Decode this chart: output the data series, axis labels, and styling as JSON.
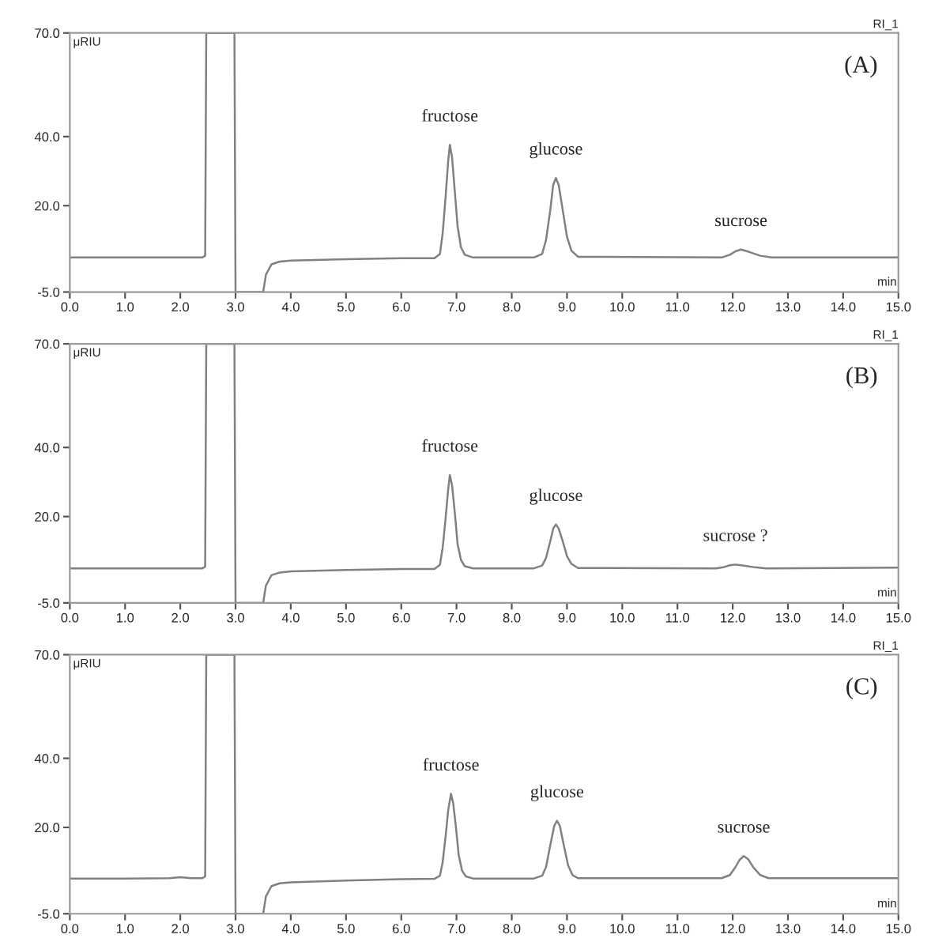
{
  "chart_data": [
    {
      "type": "line",
      "title": "(A)",
      "xlabel": "min",
      "ylabel": "μRIU",
      "xlim": [
        0,
        15
      ],
      "ylim": [
        -5,
        70
      ],
      "xticks": [
        {
          "value": 0,
          "label": "0.0"
        },
        {
          "value": 1,
          "label": "1.0"
        },
        {
          "value": 2,
          "label": "2.0"
        },
        {
          "value": 3,
          "label": "3.0"
        },
        {
          "value": 4,
          "label": "4.0"
        },
        {
          "value": 5,
          "label": "5.0"
        },
        {
          "value": 6,
          "label": "6.0"
        },
        {
          "value": 7,
          "label": "7.0"
        },
        {
          "value": 8,
          "label": "8.0"
        },
        {
          "value": 9,
          "label": "9.0"
        },
        {
          "value": 10,
          "label": "10.0"
        },
        {
          "value": 11,
          "label": "11.0"
        },
        {
          "value": 12,
          "label": "12.0"
        },
        {
          "value": 13,
          "label": "13.0"
        },
        {
          "value": 14,
          "label": "14.0"
        },
        {
          "value": 15,
          "label": "15.0"
        }
      ],
      "yticks": [
        {
          "value": -5,
          "label": "-5.0"
        },
        {
          "value": 20,
          "label": "20.0"
        },
        {
          "value": 40,
          "label": "40.0"
        },
        {
          "value": 70,
          "label": "70.0"
        }
      ],
      "annotations": [
        "RI_1",
        {
          "text": "fructose",
          "x": 6.88,
          "y": 37.6
        },
        {
          "text": "glucose",
          "x": 8.8,
          "y": 28
        },
        {
          "text": "sucrose",
          "x": 12.15,
          "y": 7.3
        }
      ],
      "series": [
        {
          "color": "#808080",
          "x": [
            0,
            1,
            2,
            2.4,
            2.45,
            2.47,
            2.98,
            3.0,
            3.49,
            3.5,
            3.55,
            3.65,
            3.8,
            4.0,
            5.0,
            6.0,
            6.6,
            6.7,
            6.75,
            6.8,
            6.85,
            6.88,
            6.92,
            6.97,
            7.02,
            7.08,
            7.15,
            7.3,
            8.4,
            8.55,
            8.62,
            8.7,
            8.75,
            8.8,
            8.85,
            8.92,
            9.0,
            9.08,
            9.2,
            11.8,
            11.95,
            12.05,
            12.15,
            12.3,
            12.5,
            12.7,
            15
          ],
          "values": [
            5,
            5,
            5,
            5,
            5.5,
            70,
            70,
            -5,
            -5,
            -5,
            0,
            3,
            3.8,
            4.1,
            4.5,
            4.8,
            4.8,
            6,
            12,
            22,
            33,
            37.6,
            34,
            24,
            14,
            8,
            5.8,
            5,
            5,
            6,
            10,
            19,
            26,
            28,
            26,
            19,
            11,
            7,
            5.2,
            5,
            5.8,
            6.8,
            7.3,
            6.6,
            5.5,
            5,
            5
          ]
        }
      ]
    },
    {
      "type": "line",
      "title": "(B)",
      "xlabel": "min",
      "ylabel": "μRIU",
      "xlim": [
        0,
        15
      ],
      "ylim": [
        -5,
        70
      ],
      "xticks": [
        {
          "value": 0,
          "label": "0.0"
        },
        {
          "value": 1,
          "label": "1.0"
        },
        {
          "value": 2,
          "label": "2.0"
        },
        {
          "value": 3,
          "label": "3.0"
        },
        {
          "value": 4,
          "label": "4.0"
        },
        {
          "value": 5,
          "label": "5.0"
        },
        {
          "value": 6,
          "label": "6.0"
        },
        {
          "value": 7,
          "label": "7.0"
        },
        {
          "value": 8,
          "label": "8.0"
        },
        {
          "value": 9,
          "label": "9.0"
        },
        {
          "value": 10,
          "label": "10.0"
        },
        {
          "value": 11,
          "label": "11.0"
        },
        {
          "value": 12,
          "label": "12.0"
        },
        {
          "value": 13,
          "label": "13.0"
        },
        {
          "value": 14,
          "label": "14.0"
        },
        {
          "value": 15,
          "label": "15.0"
        }
      ],
      "yticks": [
        {
          "value": -5,
          "label": "-5.0"
        },
        {
          "value": 20,
          "label": "20.0"
        },
        {
          "value": 40,
          "label": "40.0"
        },
        {
          "value": 70,
          "label": "70.0"
        }
      ],
      "annotations": [
        "RI_1",
        {
          "text": "fructose",
          "x": 6.88,
          "y": 32
        },
        {
          "text": "glucose",
          "x": 8.8,
          "y": 17.7
        },
        {
          "text": "sucrose ?",
          "x": 12.05,
          "y": 6.1
        }
      ],
      "series": [
        {
          "color": "#808080",
          "x": [
            0,
            1,
            2,
            2.4,
            2.45,
            2.47,
            2.98,
            3.0,
            3.49,
            3.5,
            3.55,
            3.65,
            3.8,
            4.0,
            5.0,
            6.0,
            6.6,
            6.7,
            6.75,
            6.8,
            6.85,
            6.88,
            6.92,
            6.97,
            7.02,
            7.08,
            7.15,
            7.3,
            8.4,
            8.55,
            8.62,
            8.7,
            8.75,
            8.8,
            8.85,
            8.92,
            9.0,
            9.08,
            9.2,
            11.7,
            11.85,
            11.95,
            12.05,
            12.2,
            12.4,
            12.6,
            15
          ],
          "values": [
            5,
            5,
            5,
            5,
            5.5,
            70,
            70,
            -5,
            -5,
            -5,
            0,
            3,
            3.8,
            4.1,
            4.5,
            4.8,
            4.8,
            6,
            11,
            19,
            28,
            32,
            29,
            21,
            12,
            7.5,
            5.6,
            5,
            5,
            5.8,
            8,
            13,
            16.5,
            17.7,
            16.5,
            13,
            8.5,
            6.3,
            5.1,
            5,
            5.4,
            5.9,
            6.1,
            5.8,
            5.3,
            5,
            5.2
          ]
        }
      ]
    },
    {
      "type": "line",
      "title": "(C)",
      "xlabel": "min",
      "ylabel": "μRIU",
      "xlim": [
        0,
        15
      ],
      "ylim": [
        -5,
        70
      ],
      "xticks": [
        {
          "value": 0,
          "label": "0.0"
        },
        {
          "value": 1,
          "label": "1.0"
        },
        {
          "value": 2,
          "label": "2.0"
        },
        {
          "value": 3,
          "label": "3.0"
        },
        {
          "value": 4,
          "label": "4.0"
        },
        {
          "value": 5,
          "label": "5.0"
        },
        {
          "value": 6,
          "label": "6.0"
        },
        {
          "value": 7,
          "label": "7.0"
        },
        {
          "value": 8,
          "label": "8.0"
        },
        {
          "value": 9,
          "label": "9.0"
        },
        {
          "value": 10,
          "label": "10.0"
        },
        {
          "value": 11,
          "label": "11.0"
        },
        {
          "value": 12,
          "label": "12.0"
        },
        {
          "value": 13,
          "label": "13.0"
        },
        {
          "value": 14,
          "label": "14.0"
        },
        {
          "value": 15,
          "label": "15.0"
        }
      ],
      "yticks": [
        {
          "value": -5,
          "label": "-5.0"
        },
        {
          "value": 20,
          "label": "20.0"
        },
        {
          "value": 40,
          "label": "40.0"
        },
        {
          "value": 70,
          "label": "70.0"
        }
      ],
      "annotations": [
        "RI_1",
        {
          "text": "fructose",
          "x": 6.9,
          "y": 29.7
        },
        {
          "text": "glucose",
          "x": 8.82,
          "y": 21.9
        },
        {
          "text": "sucrose",
          "x": 12.2,
          "y": 11.7
        }
      ],
      "series": [
        {
          "color": "#808080",
          "x": [
            0,
            1,
            1.8,
            2.0,
            2.2,
            2.4,
            2.45,
            2.47,
            2.98,
            3.0,
            3.49,
            3.5,
            3.55,
            3.65,
            3.8,
            4.0,
            5.0,
            6.0,
            6.6,
            6.7,
            6.75,
            6.8,
            6.85,
            6.9,
            6.94,
            6.99,
            7.04,
            7.1,
            7.17,
            7.3,
            8.4,
            8.55,
            8.62,
            8.7,
            8.77,
            8.82,
            8.87,
            8.94,
            9.02,
            9.1,
            9.2,
            11.8,
            11.95,
            12.05,
            12.12,
            12.2,
            12.28,
            12.38,
            12.5,
            12.65,
            15
          ],
          "values": [
            5.2,
            5.2,
            5.3,
            5.6,
            5.3,
            5.3,
            5.8,
            70,
            70,
            -5,
            -5,
            -5,
            0,
            3,
            3.8,
            4.1,
            4.6,
            5,
            5.1,
            6,
            10,
            17,
            25,
            29.7,
            27,
            20,
            12,
            7.5,
            5.8,
            5.2,
            5.2,
            6,
            8.5,
            15,
            20.5,
            21.9,
            20.5,
            15,
            9,
            6.2,
            5.3,
            5.3,
            6.2,
            8.5,
            10.5,
            11.7,
            10.8,
            8.3,
            6.2,
            5.3,
            5.3
          ]
        }
      ]
    }
  ]
}
